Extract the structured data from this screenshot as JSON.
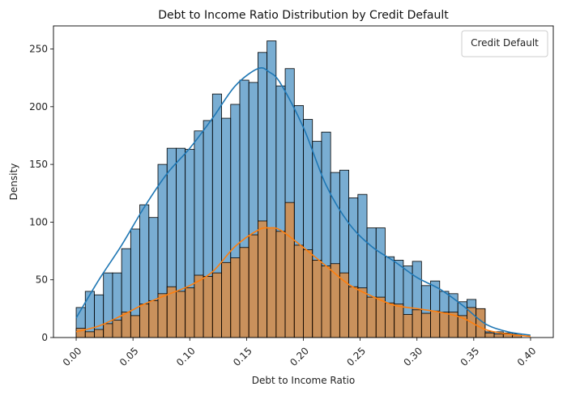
{
  "chart_data": {
    "type": "bar",
    "title": "Debt to Income Ratio Distribution by Credit Default",
    "xlabel": "Debt to Income Ratio",
    "ylabel": "Density",
    "xlim": [
      -0.02,
      0.42
    ],
    "ylim": [
      0,
      270
    ],
    "x_ticks": [
      "0.00",
      "0.05",
      "0.10",
      "0.15",
      "0.20",
      "0.25",
      "0.30",
      "0.35",
      "0.40"
    ],
    "y_ticks": [
      "0",
      "50",
      "100",
      "150",
      "200",
      "250"
    ],
    "x_tick_rotation": 45,
    "grid": false,
    "legend": {
      "title": "Credit Default",
      "position": "top-right",
      "entries": []
    },
    "bin_width": 0.008,
    "bin_start": 0.0,
    "series": [
      {
        "color": "#1f77b4",
        "values": [
          26,
          40,
          37,
          56,
          56,
          77,
          94,
          115,
          104,
          150,
          164,
          164,
          163,
          179,
          188,
          211,
          190,
          202,
          223,
          221,
          247,
          257,
          218,
          233,
          201,
          189,
          170,
          178,
          143,
          145,
          121,
          124,
          95,
          95,
          70,
          67,
          62,
          66,
          45,
          49,
          40,
          38,
          31,
          33,
          25,
          5,
          5,
          4,
          3
        ]
      },
      {
        "color": "#ff7f0e",
        "values": [
          8,
          5,
          7,
          12,
          15,
          22,
          19,
          29,
          32,
          38,
          44,
          40,
          43,
          54,
          53,
          56,
          65,
          69,
          78,
          89,
          101,
          95,
          92,
          117,
          80,
          76,
          67,
          62,
          64,
          56,
          44,
          43,
          35,
          35,
          30,
          29,
          20,
          24,
          21,
          23,
          22,
          22,
          19,
          26,
          25,
          4,
          3,
          3,
          2
        ]
      }
    ],
    "kde": [
      {
        "color": "#1f77b4",
        "x": [
          0.0,
          0.02,
          0.04,
          0.06,
          0.08,
          0.1,
          0.12,
          0.14,
          0.16,
          0.17,
          0.18,
          0.2,
          0.22,
          0.24,
          0.26,
          0.28,
          0.3,
          0.32,
          0.34,
          0.36,
          0.38,
          0.4
        ],
        "y": [
          17,
          50,
          80,
          113,
          142,
          164,
          190,
          218,
          233,
          230,
          220,
          182,
          132,
          99,
          79,
          66,
          52,
          42,
          28,
          12,
          5,
          2
        ]
      },
      {
        "color": "#ff7f0e",
        "x": [
          0.0,
          0.02,
          0.04,
          0.06,
          0.08,
          0.1,
          0.12,
          0.14,
          0.16,
          0.17,
          0.18,
          0.2,
          0.22,
          0.24,
          0.26,
          0.28,
          0.3,
          0.32,
          0.34,
          0.36,
          0.38,
          0.4
        ],
        "y": [
          5,
          10,
          19,
          29,
          37,
          45,
          57,
          79,
          93,
          95,
          93,
          78,
          62,
          46,
          36,
          28,
          25,
          22,
          17,
          7,
          3,
          1
        ]
      }
    ]
  }
}
